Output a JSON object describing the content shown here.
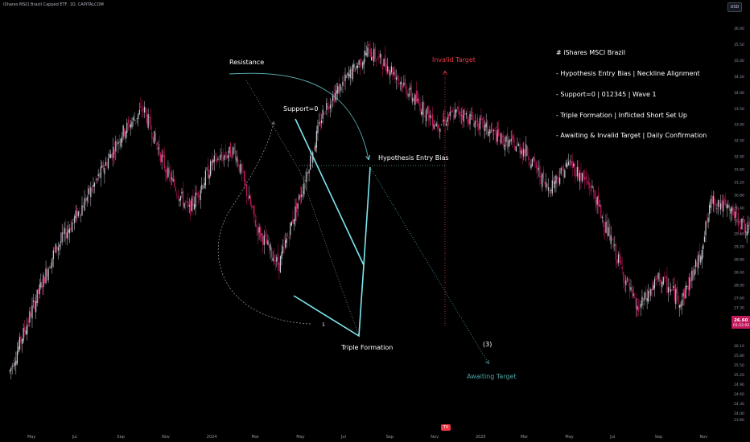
{
  "header": {
    "title": "iShares MSCI Brazil Capped ETF, 1D, CAPITALCOM",
    "currency": "USD"
  },
  "notes": [
    "# iShares MSCI Brazil",
    "- Hypothesis Entry Bias | Neckline Alignment",
    "- Support=0 | 012345 | Wave 1",
    "- Triple Formation | Inflicted Short Set Up",
    "- Awaiting & Invalid Target | Daily Confirmation"
  ],
  "annotations": {
    "resistance": "Resistance",
    "support": "Support=0",
    "hypothesis": "Hypothesis Entry Bias",
    "invalid": "Invalid Target",
    "triple": "Triple Formation",
    "wave1": "1",
    "wave3": "(3)",
    "awaiting": "Awaiting Target"
  },
  "colors": {
    "background": "#000000",
    "up": "#c9cdd4",
    "down": "#c2185b",
    "pattern": "#7fe7f0",
    "invalid": "#f23645",
    "awaiting": "#4fa6a6"
  },
  "logo_text": "TV",
  "chart_data": {
    "type": "candlestick",
    "symbol": "iShares MSCI Brazil Capped ETF",
    "interval": "1D",
    "x_ticks": [
      "May",
      "Jul",
      "Sep",
      "Nov",
      "2024",
      "Mar",
      "May",
      "Jul",
      "Sep",
      "Nov",
      "2025",
      "Mar",
      "May",
      "Jul",
      "Sep",
      "Nov"
    ],
    "y_ticks": [
      36.0,
      35.5,
      35.0,
      34.5,
      34.0,
      33.5,
      33.0,
      32.5,
      32.0,
      31.6,
      31.2,
      30.8,
      30.4,
      30.0,
      29.6,
      29.2,
      28.8,
      28.4,
      28.0,
      27.6,
      27.3,
      27.0,
      26.7,
      26.1,
      25.8,
      25.5,
      25.2,
      24.9,
      24.6,
      24.3,
      24.0,
      23.8
    ],
    "ylim": [
      23.8,
      36.2
    ],
    "last_price": "26.60",
    "countdown": "01:22:02",
    "price_path": [
      [
        "2023-04-20",
        25.3
      ],
      [
        "2023-05-05",
        27.2
      ],
      [
        "2023-05-20",
        29.0
      ],
      [
        "2023-06-05",
        30.2
      ],
      [
        "2023-06-20",
        31.4
      ],
      [
        "2023-07-05",
        32.7
      ],
      [
        "2023-07-20",
        33.5
      ],
      [
        "2023-08-05",
        31.5
      ],
      [
        "2023-08-20",
        30.3
      ],
      [
        "2023-09-05",
        31.8
      ],
      [
        "2023-09-20",
        32.2
      ],
      [
        "2023-10-05",
        29.8
      ],
      [
        "2023-10-20",
        28.6
      ],
      [
        "2023-11-05",
        31.0
      ],
      [
        "2023-11-20",
        33.5
      ],
      [
        "2023-12-05",
        34.4
      ],
      [
        "2023-12-20",
        35.3
      ],
      [
        "2024-01-05",
        34.7
      ],
      [
        "2024-01-20",
        33.8
      ],
      [
        "2024-02-05",
        33.0
      ],
      [
        "2024-02-20",
        33.4
      ],
      [
        "2024-03-05",
        33.0
      ],
      [
        "2024-03-20",
        32.5
      ],
      [
        "2024-04-05",
        32.2
      ],
      [
        "2024-04-20",
        31.0
      ],
      [
        "2024-05-05",
        31.8
      ],
      [
        "2024-05-20",
        31.0
      ],
      [
        "2024-06-05",
        29.0
      ],
      [
        "2024-06-20",
        27.2
      ],
      [
        "2024-07-05",
        28.2
      ],
      [
        "2024-07-20",
        27.5
      ],
      [
        "2024-08-01",
        28.8
      ],
      [
        "2024-08-10",
        30.7
      ],
      [
        "2024-08-25",
        30.2
      ],
      [
        "2024-09-10",
        29.3
      ],
      [
        "2024-09-25",
        29.0
      ],
      [
        "2024-10-10",
        28.5
      ],
      [
        "2024-10-25",
        27.8
      ],
      [
        "2024-11-10",
        27.4
      ],
      [
        "2024-11-20",
        26.6
      ]
    ]
  }
}
